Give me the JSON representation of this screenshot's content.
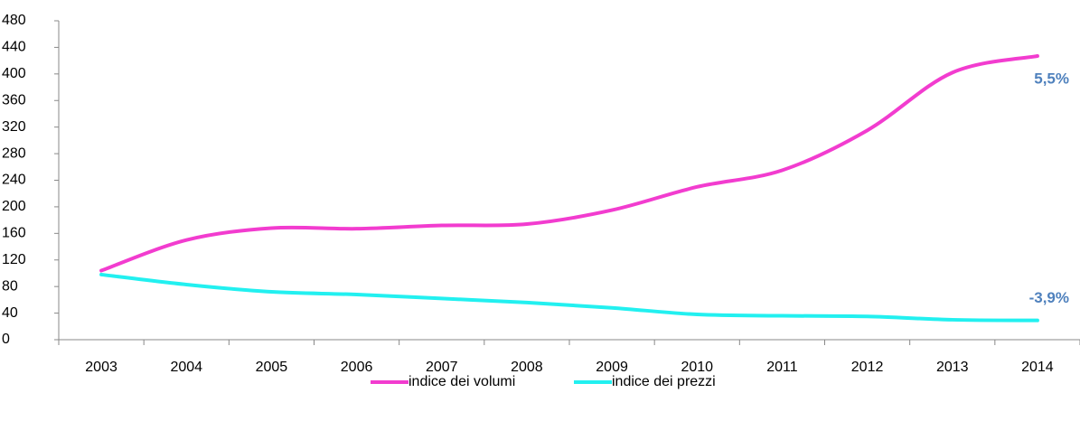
{
  "chart_data": {
    "type": "line",
    "categories": [
      "2003",
      "2004",
      "2005",
      "2006",
      "2007",
      "2008",
      "2009",
      "2010",
      "2011",
      "2012",
      "2013",
      "2014"
    ],
    "series": [
      {
        "name": "indice dei volumi",
        "color": "#f23ccf",
        "values": [
          104,
          150,
          168,
          167,
          172,
          174,
          195,
          230,
          255,
          315,
          402,
          427
        ]
      },
      {
        "name": "indice dei prezzi",
        "color": "#22f0f0",
        "values": [
          98,
          83,
          72,
          68,
          62,
          56,
          48,
          38,
          36,
          35,
          30,
          29
        ]
      }
    ],
    "annotations": [
      "5,5%",
      "-3,9%"
    ],
    "annotation_color": "#4f81bd",
    "ylim": [
      0,
      480
    ],
    "yticks": [
      0,
      40,
      80,
      120,
      160,
      200,
      240,
      280,
      320,
      360,
      400,
      440,
      480
    ],
    "grid": false,
    "legend": "bottom"
  }
}
